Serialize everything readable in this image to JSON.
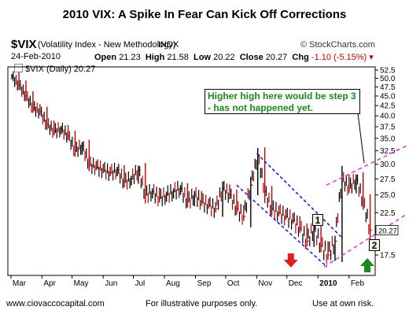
{
  "title": "2010 VIX:   A Spike In Fear Can Kick Off Corrections",
  "header": {
    "symbol": "$VIX",
    "description": "(Volatility Index - New Methodology)",
    "exchange": "INDX",
    "credit": "© StockCharts.com",
    "date": "24-Feb-2010",
    "open_label": "Open",
    "open": "21.23",
    "high_label": "High",
    "high": "21.58",
    "low_label": "Low",
    "low": "20.22",
    "close_label": "Close",
    "close": "20.27",
    "chg_label": "Chg",
    "chg": "-1.10 (-5.15%)"
  },
  "legend_text": "$VIX (Daily) 20.27",
  "callout_text": "Higher high here would be step 3 - has not happened yet.",
  "marker_1": "1",
  "marker_2": "2",
  "price_tag": "20.27",
  "footer": {
    "left": "www.ciovaccocapital.com",
    "middle": "For illustrative purposes only.",
    "right": "Use at own risk."
  },
  "colors": {
    "up_bar": "#000000",
    "down_bar": "#c00000",
    "blue_channel": "#2020d0",
    "magenta_channel": "#e040e0",
    "callout_text": "#1a8a1a",
    "red_arrow": "#e02020",
    "green_arrow": "#1a8a1a"
  },
  "chart_data": {
    "type": "line",
    "series": [
      {
        "name": "$VIX (Daily)",
        "x": [
          "2009-03-02",
          "2009-03-09",
          "2009-03-16",
          "2009-03-23",
          "2009-03-30",
          "2009-04-06",
          "2009-04-13",
          "2009-04-20",
          "2009-04-27",
          "2009-05-04",
          "2009-05-11",
          "2009-05-18",
          "2009-05-25",
          "2009-06-01",
          "2009-06-08",
          "2009-06-15",
          "2009-06-22",
          "2009-06-29",
          "2009-07-06",
          "2009-07-13",
          "2009-07-20",
          "2009-07-27",
          "2009-08-03",
          "2009-08-10",
          "2009-08-17",
          "2009-08-24",
          "2009-08-31",
          "2009-09-07",
          "2009-09-14",
          "2009-09-21",
          "2009-09-28",
          "2009-10-05",
          "2009-10-12",
          "2009-10-19",
          "2009-10-26",
          "2009-11-02",
          "2009-11-09",
          "2009-11-16",
          "2009-11-23",
          "2009-11-30",
          "2009-12-07",
          "2009-12-14",
          "2009-12-21",
          "2009-12-28",
          "2010-01-04",
          "2010-01-11",
          "2010-01-18",
          "2010-01-25",
          "2010-02-01",
          "2010-02-08",
          "2010-02-15",
          "2010-02-22"
        ],
        "values": [
          50.5,
          48.0,
          45.0,
          42.0,
          41.0,
          38.0,
          36.5,
          37.0,
          35.5,
          32.5,
          33.5,
          30.0,
          29.5,
          29.0,
          28.5,
          29.0,
          27.0,
          27.5,
          29.0,
          25.0,
          25.5,
          24.5,
          25.0,
          25.5,
          26.0,
          24.0,
          25.0,
          24.0,
          23.5,
          23.0,
          26.0,
          25.0,
          23.0,
          22.0,
          26.5,
          31.5,
          25.5,
          23.0,
          22.5,
          22.0,
          21.5,
          20.5,
          19.0,
          20.5,
          18.5,
          17.5,
          19.0,
          27.5,
          26.0,
          27.5,
          24.0,
          20.27
        ]
      }
    ],
    "x_tick_labels": [
      "Mar",
      "Apr",
      "May",
      "Jun",
      "Jul",
      "Aug",
      "Sep",
      "Oct",
      "Nov",
      "Dec",
      "2010",
      "Feb"
    ],
    "y_tick_labels": [
      "17.5",
      "20.0",
      "22.5",
      "25.0",
      "27.5",
      "30.0",
      "32.5",
      "35.0",
      "37.5",
      "40.0",
      "42.5",
      "45.0",
      "47.5",
      "50.0",
      "52.5"
    ],
    "ylim": [
      15.5,
      53.5
    ],
    "y_scale": "log",
    "grid": false,
    "annotations": [
      {
        "kind": "channel",
        "color": "blue",
        "from": "2009-11-02",
        "to": "2010-01-25",
        "description": "descending channel"
      },
      {
        "kind": "channel",
        "color": "magenta",
        "from": "2010-01-20",
        "to": "2010-02-24",
        "description": "ascending channel"
      },
      {
        "kind": "arrow",
        "direction": "down",
        "color": "red",
        "at": "2009-12-07"
      },
      {
        "kind": "arrow",
        "direction": "up",
        "color": "green",
        "at": "2010-02-22"
      }
    ]
  }
}
